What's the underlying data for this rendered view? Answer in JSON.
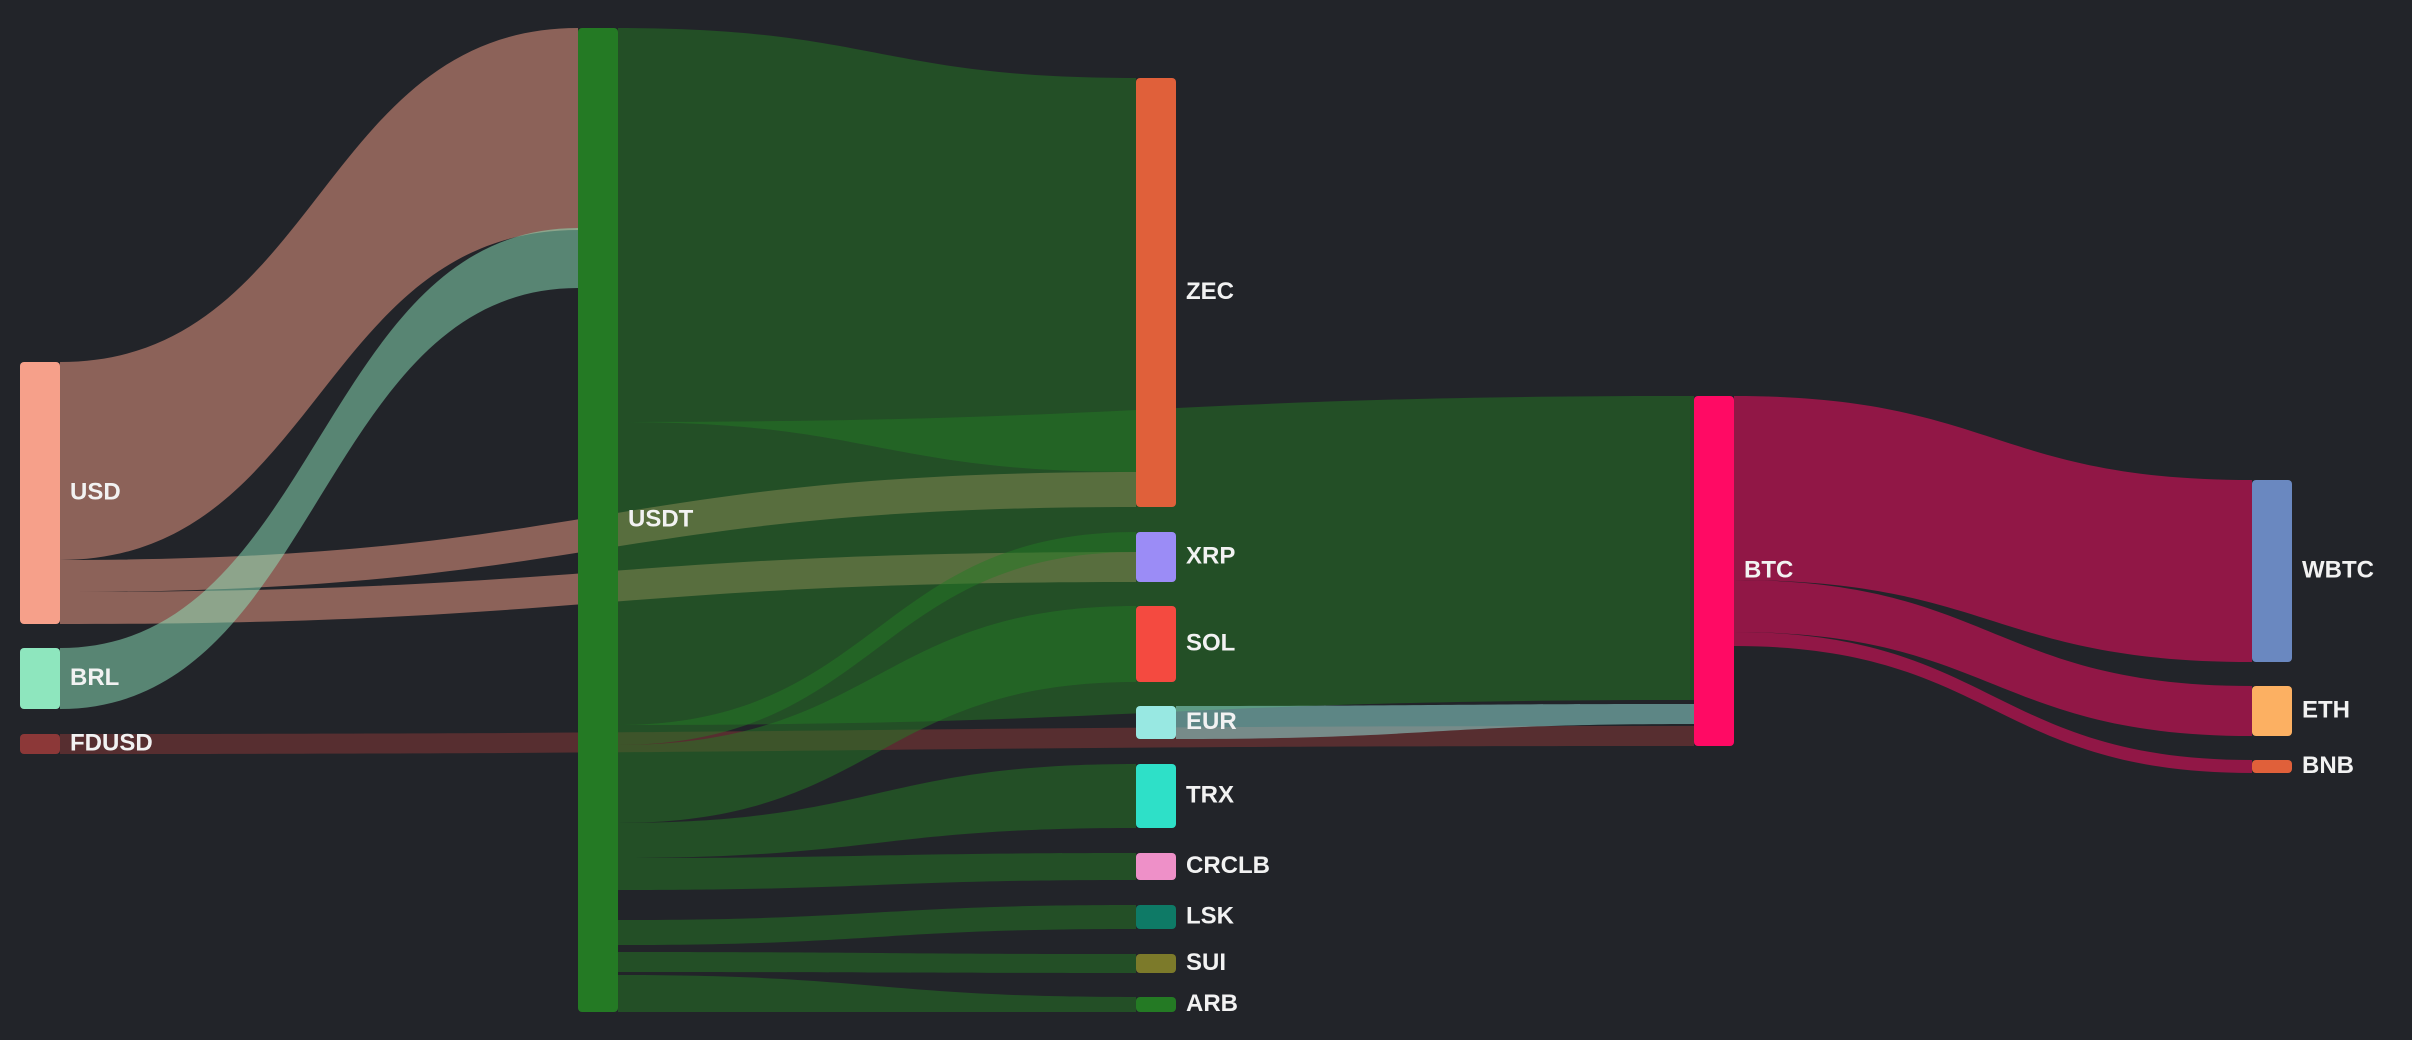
{
  "chart_data": {
    "type": "sankey",
    "nodes": [
      {
        "id": "USD",
        "label": "USD",
        "color": "#f6a08a"
      },
      {
        "id": "BRL",
        "label": "BRL",
        "color": "#8ee6be"
      },
      {
        "id": "FDUSD",
        "label": "FDUSD",
        "color": "#8c3838"
      },
      {
        "id": "USDT",
        "label": "USDT",
        "color": "#247a24"
      },
      {
        "id": "ZEC",
        "label": "ZEC",
        "color": "#e0603a"
      },
      {
        "id": "XRP",
        "label": "XRP",
        "color": "#9b8cf6"
      },
      {
        "id": "SOL",
        "label": "SOL",
        "color": "#f44a40"
      },
      {
        "id": "EUR",
        "label": "EUR",
        "color": "#98e8e2"
      },
      {
        "id": "TRX",
        "label": "TRX",
        "color": "#2ee0c8"
      },
      {
        "id": "CRCLB",
        "label": "CRCLB",
        "color": "#ee90c8"
      },
      {
        "id": "LSK",
        "label": "LSK",
        "color": "#0e7a66"
      },
      {
        "id": "SUI",
        "label": "SUI",
        "color": "#7c7a2a"
      },
      {
        "id": "ARB",
        "label": "ARB",
        "color": "#247a24"
      },
      {
        "id": "BTC",
        "label": "BTC",
        "color": "#ff0a64"
      },
      {
        "id": "WBTC",
        "label": "WBTC",
        "color": "#6a88c0"
      },
      {
        "id": "ETH",
        "label": "ETH",
        "color": "#fcb062"
      },
      {
        "id": "BNB",
        "label": "BNB",
        "color": "#e0603a"
      }
    ],
    "links": [
      {
        "source": "USD",
        "target": "USDT",
        "value": 200
      },
      {
        "source": "USD",
        "target": "ZEC",
        "value": 35
      },
      {
        "source": "USD",
        "target": "XRP",
        "value": 30
      },
      {
        "source": "BRL",
        "target": "USDT",
        "value": 60
      },
      {
        "source": "FDUSD",
        "target": "BTC",
        "value": 20
      },
      {
        "source": "USDT",
        "target": "ZEC",
        "value": 395
      },
      {
        "source": "USDT",
        "target": "BTC",
        "value": 303
      },
      {
        "source": "USDT",
        "target": "XRP",
        "value": 20
      },
      {
        "source": "USDT",
        "target": "SOL",
        "value": 78
      },
      {
        "source": "USDT",
        "target": "TRX",
        "value": 65
      },
      {
        "source": "USDT",
        "target": "CRCLB",
        "value": 28
      },
      {
        "source": "USDT",
        "target": "LSK",
        "value": 25
      },
      {
        "source": "USDT",
        "target": "SUI",
        "value": 20
      },
      {
        "source": "USDT",
        "target": "ARB",
        "value": 15
      },
      {
        "source": "EUR",
        "target": "BTC",
        "value": 20
      },
      {
        "source": "BTC",
        "target": "WBTC",
        "value": 183
      },
      {
        "source": "BTC",
        "target": "ETH",
        "value": 50
      },
      {
        "source": "BTC",
        "target": "BNB",
        "value": 14
      }
    ]
  }
}
